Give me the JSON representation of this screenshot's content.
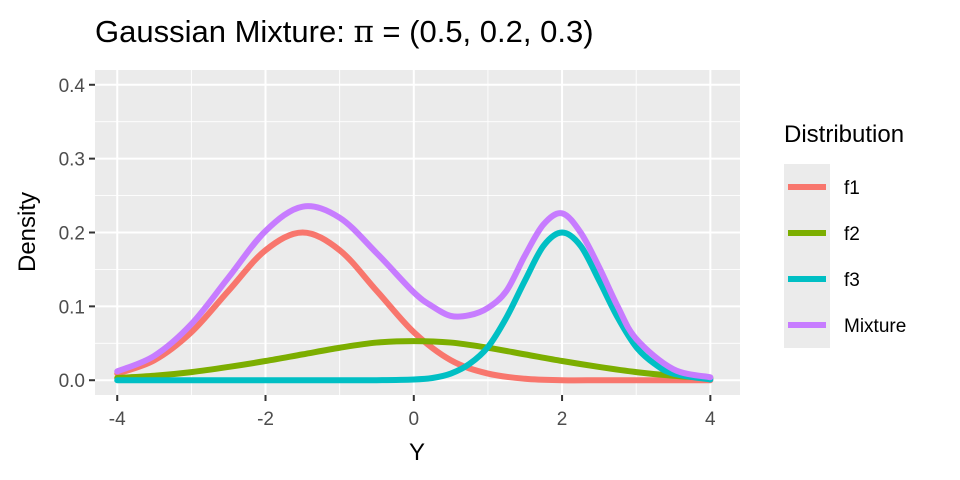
{
  "chart_data": {
    "type": "line",
    "title": "Gaussian Mixture: π  = (0.5, 0.2, 0.3)",
    "title_prefix": "Gaussian Mixture: ",
    "title_pi": "π",
    "title_suffix": "  = (0.5, 0.2, 0.3)",
    "xlabel": "Y",
    "ylabel": "Density",
    "xlim": [
      -4.3,
      4.4
    ],
    "ylim": [
      -0.02,
      0.42
    ],
    "x_ticks": [
      -4,
      -2,
      0,
      2,
      4
    ],
    "x_tick_labels": [
      "-4",
      "-2",
      "0",
      "2",
      "4"
    ],
    "y_ticks": [
      0.0,
      0.1,
      0.2,
      0.3,
      0.4
    ],
    "y_tick_labels": [
      "0.0",
      "0.1",
      "0.2",
      "0.3",
      "0.4"
    ],
    "grid": true,
    "legend": {
      "title": "Distribution",
      "position": "right"
    },
    "series": [
      {
        "name": "f1",
        "color": "#F8766D",
        "x": [
          -4.0,
          -3.5,
          -3.0,
          -2.5,
          -2.0,
          -1.5,
          -1.0,
          -0.5,
          0.0,
          0.5,
          1.0,
          1.5,
          2.0,
          2.5,
          3.0,
          3.5,
          4.0
        ],
        "y": [
          0.009,
          0.027,
          0.065,
          0.121,
          0.176,
          0.2,
          0.176,
          0.121,
          0.065,
          0.027,
          0.009,
          0.002,
          0.0,
          0.0,
          0.0,
          0.0,
          0.0
        ]
      },
      {
        "name": "f2",
        "color": "#7CAE00",
        "x": [
          -4.0,
          -3.5,
          -3.0,
          -2.5,
          -2.0,
          -1.5,
          -1.0,
          -0.5,
          0.0,
          0.5,
          1.0,
          1.5,
          2.0,
          2.5,
          3.0,
          3.5,
          4.0
        ],
        "y": [
          0.003,
          0.006,
          0.011,
          0.018,
          0.026,
          0.035,
          0.044,
          0.051,
          0.053,
          0.051,
          0.044,
          0.035,
          0.026,
          0.018,
          0.011,
          0.006,
          0.003
        ]
      },
      {
        "name": "f3",
        "color": "#00BFC4",
        "x": [
          -4.0,
          -3.0,
          -2.0,
          -1.0,
          -0.5,
          0.0,
          0.25,
          0.5,
          0.75,
          1.0,
          1.25,
          1.5,
          1.75,
          2.0,
          2.25,
          2.5,
          2.75,
          3.0,
          3.25,
          3.5,
          4.0
        ],
        "y": [
          0.0,
          0.0,
          0.0,
          0.0,
          0.0,
          0.001,
          0.003,
          0.009,
          0.022,
          0.045,
          0.085,
          0.135,
          0.182,
          0.2,
          0.182,
          0.135,
          0.085,
          0.045,
          0.022,
          0.009,
          0.001
        ]
      },
      {
        "name": "Mixture",
        "color": "#C77CFF",
        "x": [
          -4.0,
          -3.5,
          -3.0,
          -2.5,
          -2.0,
          -1.5,
          -1.0,
          -0.5,
          0.0,
          0.25,
          0.5,
          0.75,
          1.0,
          1.25,
          1.5,
          1.75,
          2.0,
          2.25,
          2.5,
          2.75,
          3.0,
          3.5,
          4.0
        ],
        "y": [
          0.012,
          0.033,
          0.076,
          0.139,
          0.202,
          0.235,
          0.22,
          0.172,
          0.119,
          0.1,
          0.087,
          0.088,
          0.098,
          0.121,
          0.169,
          0.211,
          0.226,
          0.2,
          0.153,
          0.1,
          0.056,
          0.015,
          0.004
        ]
      }
    ]
  }
}
